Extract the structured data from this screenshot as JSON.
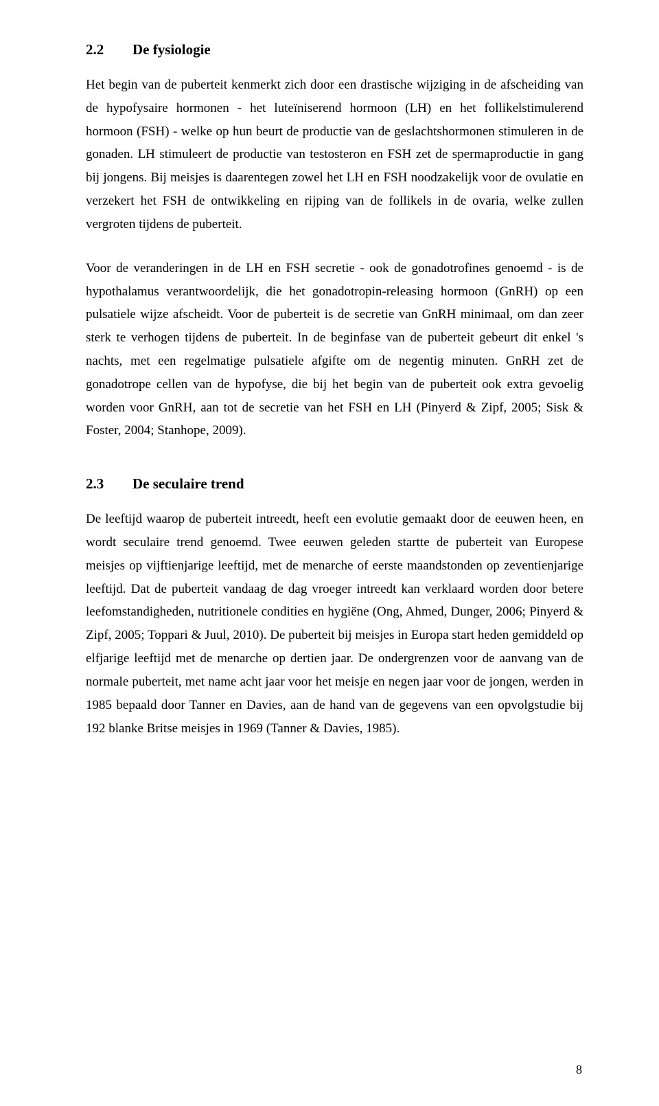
{
  "section1": {
    "number": "2.2",
    "title": "De fysiologie"
  },
  "para1": "Het begin van de puberteit kenmerkt zich door een drastische wijziging in de afscheiding van de hypofysaire hormonen - het luteïniserend hormoon (LH) en het follikelstimulerend hormoon (FSH) - welke op hun beurt de productie van de geslachtshormonen stimuleren in de gonaden. LH stimuleert de productie van testosteron en FSH zet de spermaproductie in gang bij jongens. Bij meisjes is daarentegen zowel het LH en FSH noodzakelijk voor de ovulatie en verzekert het FSH de ontwikkeling en rijping van de follikels in de ovaria, welke zullen vergroten tijdens de puberteit.",
  "para2": "Voor de veranderingen in de LH en FSH secretie - ook de gonadotrofines genoemd - is de hypothalamus verantwoordelijk, die het gonadotropin-releasing hormoon (GnRH) op een pulsatiele wijze afscheidt. Voor de puberteit is de secretie van GnRH minimaal, om dan zeer sterk te verhogen tijdens de puberteit. In de beginfase van de puberteit gebeurt dit enkel 's nachts, met een regelmatige pulsatiele afgifte om de negentig minuten. GnRH zet de gonadotrope cellen van de hypofyse, die bij het begin van de puberteit ook extra gevoelig worden voor GnRH, aan tot de secretie van het FSH en LH (Pinyerd & Zipf, 2005; Sisk & Foster, 2004; Stanhope, 2009).",
  "section2": {
    "number": "2.3",
    "title": "De seculaire trend"
  },
  "para3": "De leeftijd waarop de puberteit intreedt, heeft een evolutie gemaakt door de eeuwen heen, en wordt seculaire trend genoemd. Twee eeuwen geleden startte de puberteit van Europese meisjes op vijftienjarige leeftijd, met de menarche of eerste maandstonden op zeventienjarige leeftijd. Dat de puberteit vandaag de dag vroeger intreedt kan verklaard worden door betere leefomstandigheden, nutritionele condities en hygiëne (Ong, Ahmed, Dunger, 2006; Pinyerd & Zipf, 2005; Toppari & Juul, 2010). De puberteit bij meisjes in Europa start heden gemiddeld op elfjarige leeftijd met de menarche op dertien jaar. De ondergrenzen voor de aanvang van de normale puberteit, met name acht jaar voor het meisje en negen jaar voor de jongen, werden in 1985 bepaald door Tanner en Davies, aan de hand van de gegevens van een opvolgstudie bij 192 blanke Britse meisjes in 1969 (Tanner & Davies, 1985).",
  "page_number": "8"
}
